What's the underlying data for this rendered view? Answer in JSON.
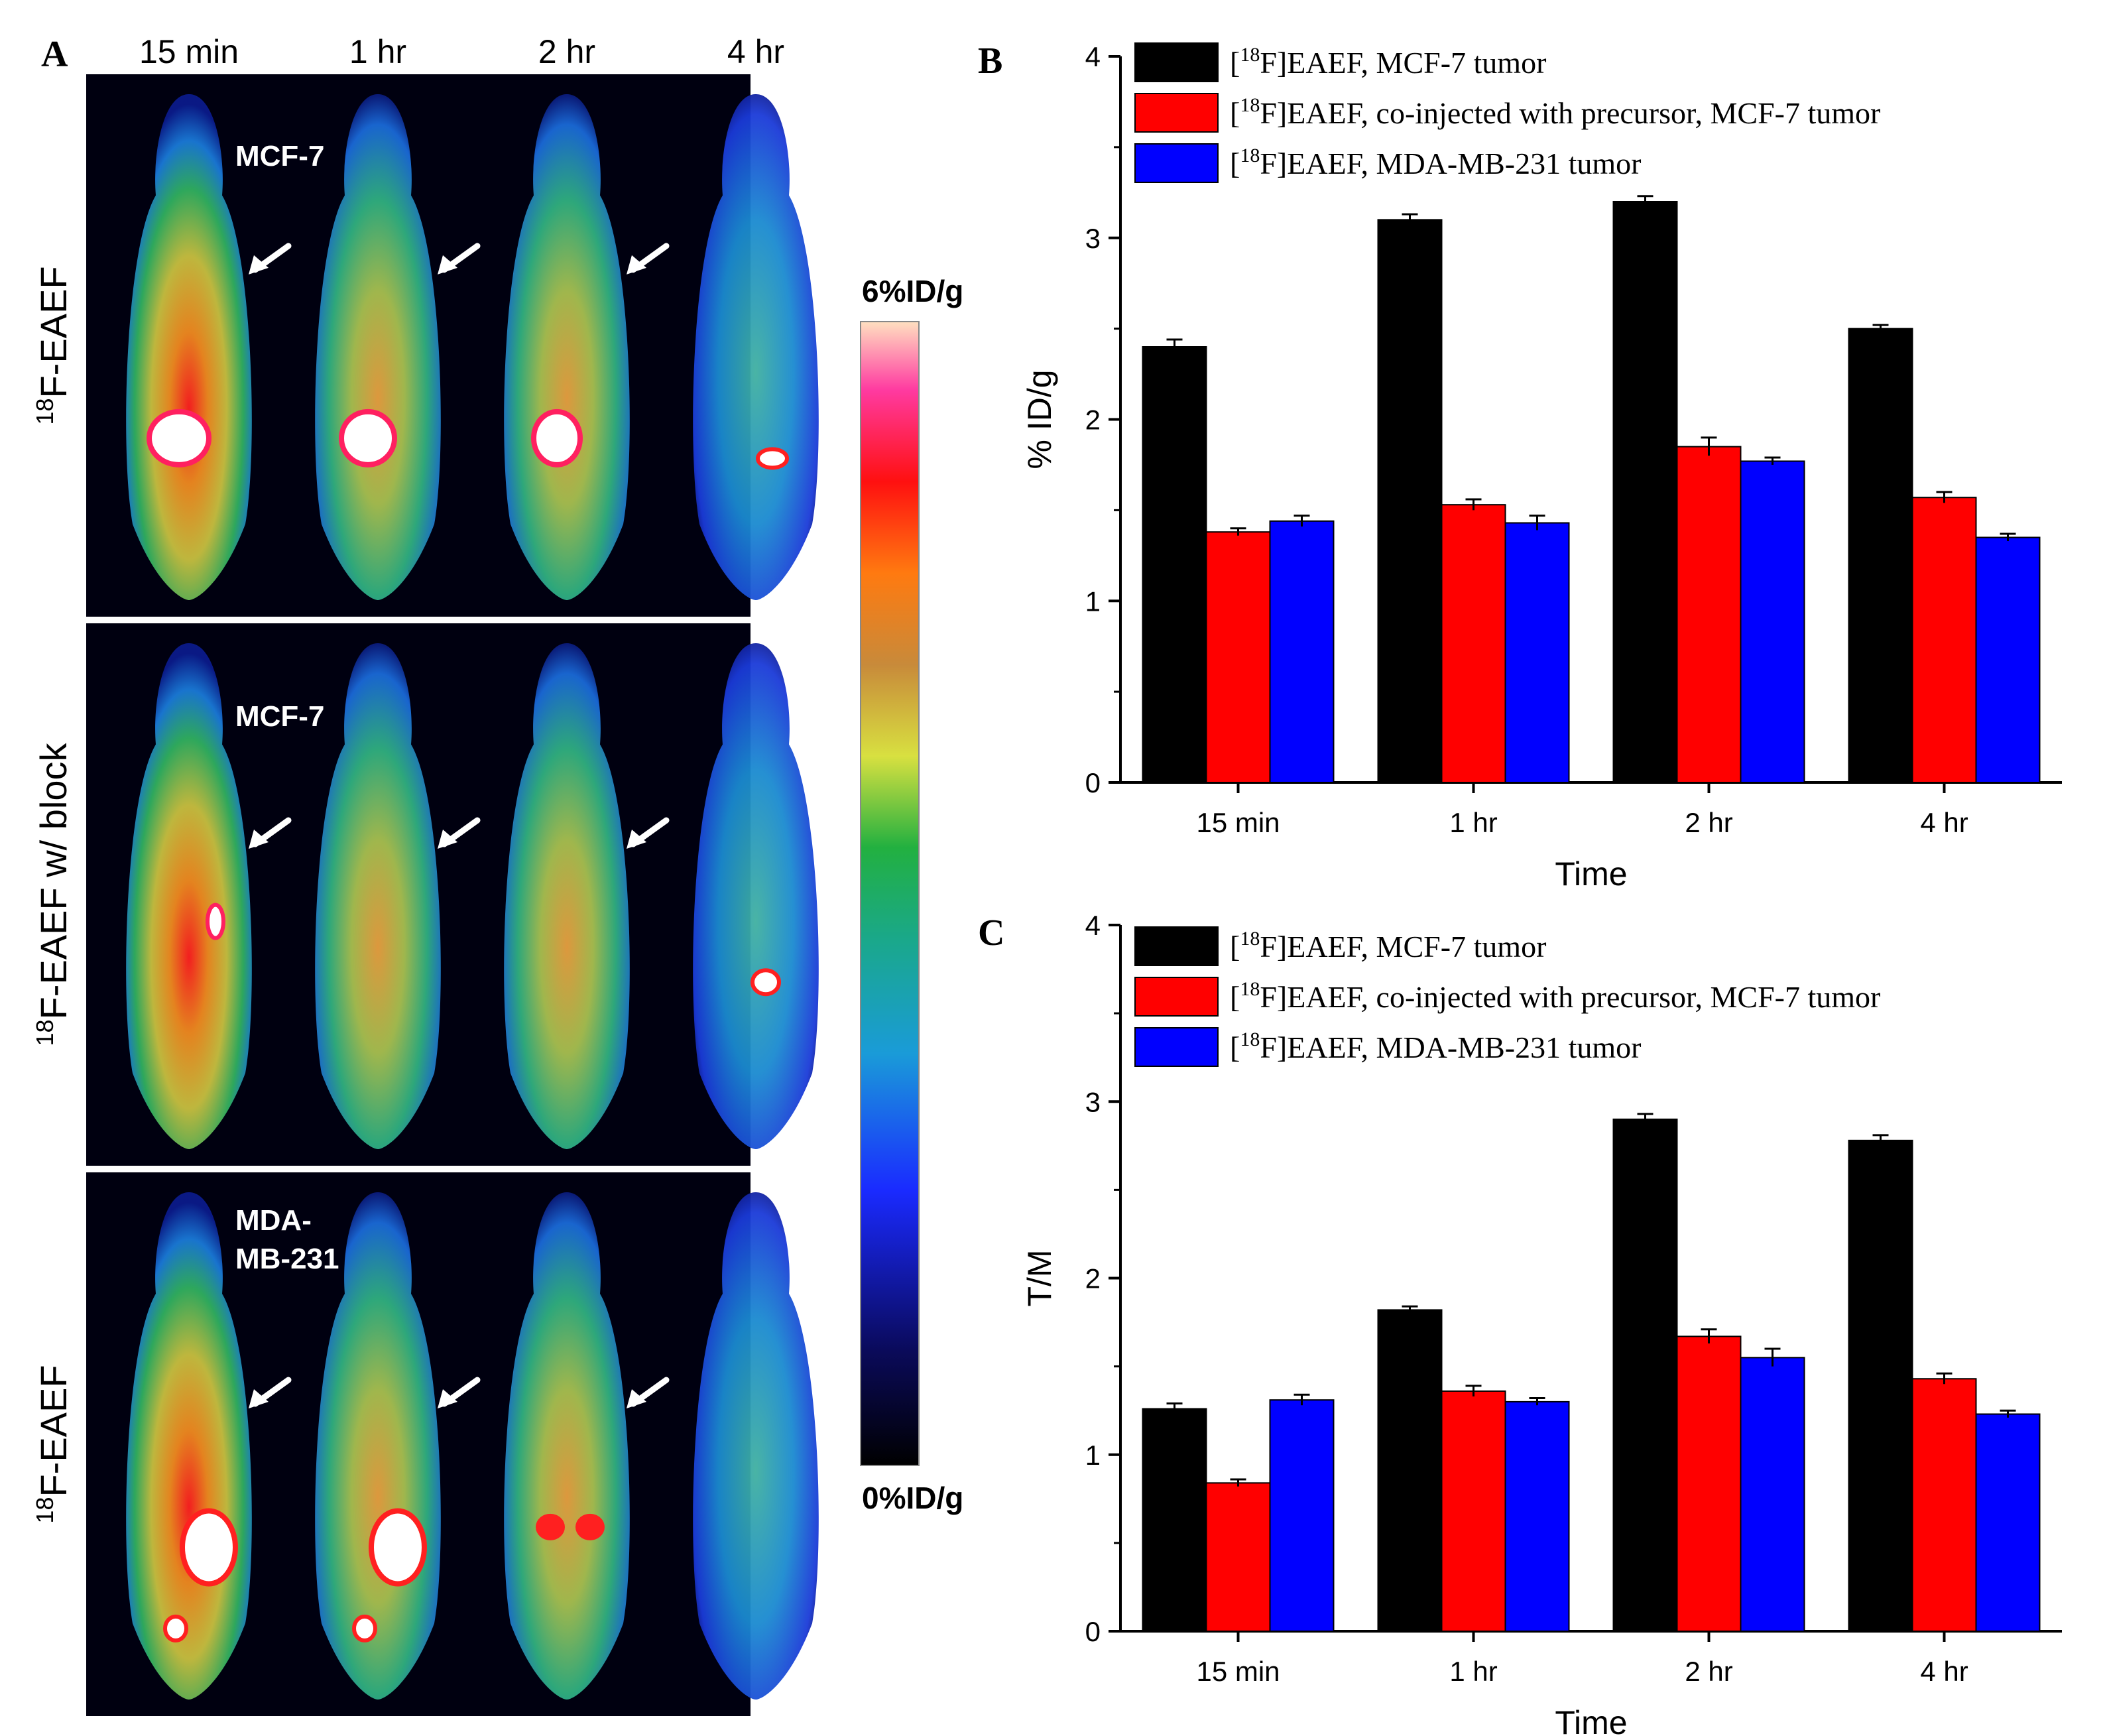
{
  "panel_a": {
    "letter": "A",
    "timepoints": [
      "15 min",
      "1 hr",
      "2 hr",
      "4 hr"
    ],
    "rows": [
      {
        "label": "F-EAEF",
        "sup": "18",
        "tumor_label": [
          "MCF-7"
        ]
      },
      {
        "label": "F-EAEF w/ block",
        "sup": "18",
        "tumor_label": [
          "MCF-7"
        ]
      },
      {
        "label": "F-EAEF",
        "sup": "18",
        "tumor_label": [
          "MDA-",
          "MB-231"
        ]
      }
    ],
    "colorbar": {
      "max_label": "6%ID/g",
      "min_label": "0%ID/g"
    }
  },
  "chart_data": [
    {
      "panel": "B",
      "type": "bar",
      "categories": [
        "15 min",
        "1 hr",
        "2 hr",
        "4 hr"
      ],
      "xlabel": "Time",
      "ylabel": "% ID/g",
      "ylim": [
        0,
        4
      ],
      "yticks": [
        "0",
        "1",
        "2",
        "3",
        "4"
      ],
      "legend_position": "top",
      "series": [
        {
          "name": "F]EAEF, MCF-7 tumor",
          "sup": "18",
          "color": "#000000",
          "values": [
            2.4,
            3.1,
            3.2,
            2.5
          ],
          "errors": [
            0.04,
            0.03,
            0.03,
            0.02
          ]
        },
        {
          "name": "F]EAEF, co-injected with precursor, MCF-7 tumor",
          "sup": "18",
          "color": "#ff0000",
          "values": [
            1.38,
            1.53,
            1.85,
            1.57
          ],
          "errors": [
            0.02,
            0.03,
            0.05,
            0.03
          ]
        },
        {
          "name": "F]EAEF, MDA-MB-231 tumor",
          "sup": "18",
          "color": "#0000ff",
          "values": [
            1.44,
            1.43,
            1.77,
            1.35
          ],
          "errors": [
            0.03,
            0.04,
            0.02,
            0.02
          ]
        }
      ]
    },
    {
      "panel": "C",
      "type": "bar",
      "categories": [
        "15 min",
        "1 hr",
        "2 hr",
        "4 hr"
      ],
      "xlabel": "Time",
      "ylabel": "T/M",
      "ylim": [
        0,
        4
      ],
      "yticks": [
        "0",
        "1",
        "2",
        "3",
        "4"
      ],
      "legend_position": "top",
      "series": [
        {
          "name": "F]EAEF, MCF-7 tumor",
          "sup": "18",
          "color": "#000000",
          "values": [
            1.26,
            1.82,
            2.9,
            2.78
          ],
          "errors": [
            0.03,
            0.02,
            0.03,
            0.03
          ]
        },
        {
          "name": "F]EAEF, co-injected with precursor, MCF-7 tumor",
          "sup": "18",
          "color": "#ff0000",
          "values": [
            0.84,
            1.36,
            1.67,
            1.43
          ],
          "errors": [
            0.02,
            0.03,
            0.04,
            0.03
          ]
        },
        {
          "name": "F]EAEF, MDA-MB-231 tumor",
          "sup": "18",
          "color": "#0000ff",
          "values": [
            1.31,
            1.3,
            1.55,
            1.23
          ],
          "errors": [
            0.03,
            0.02,
            0.05,
            0.02
          ]
        }
      ]
    }
  ]
}
